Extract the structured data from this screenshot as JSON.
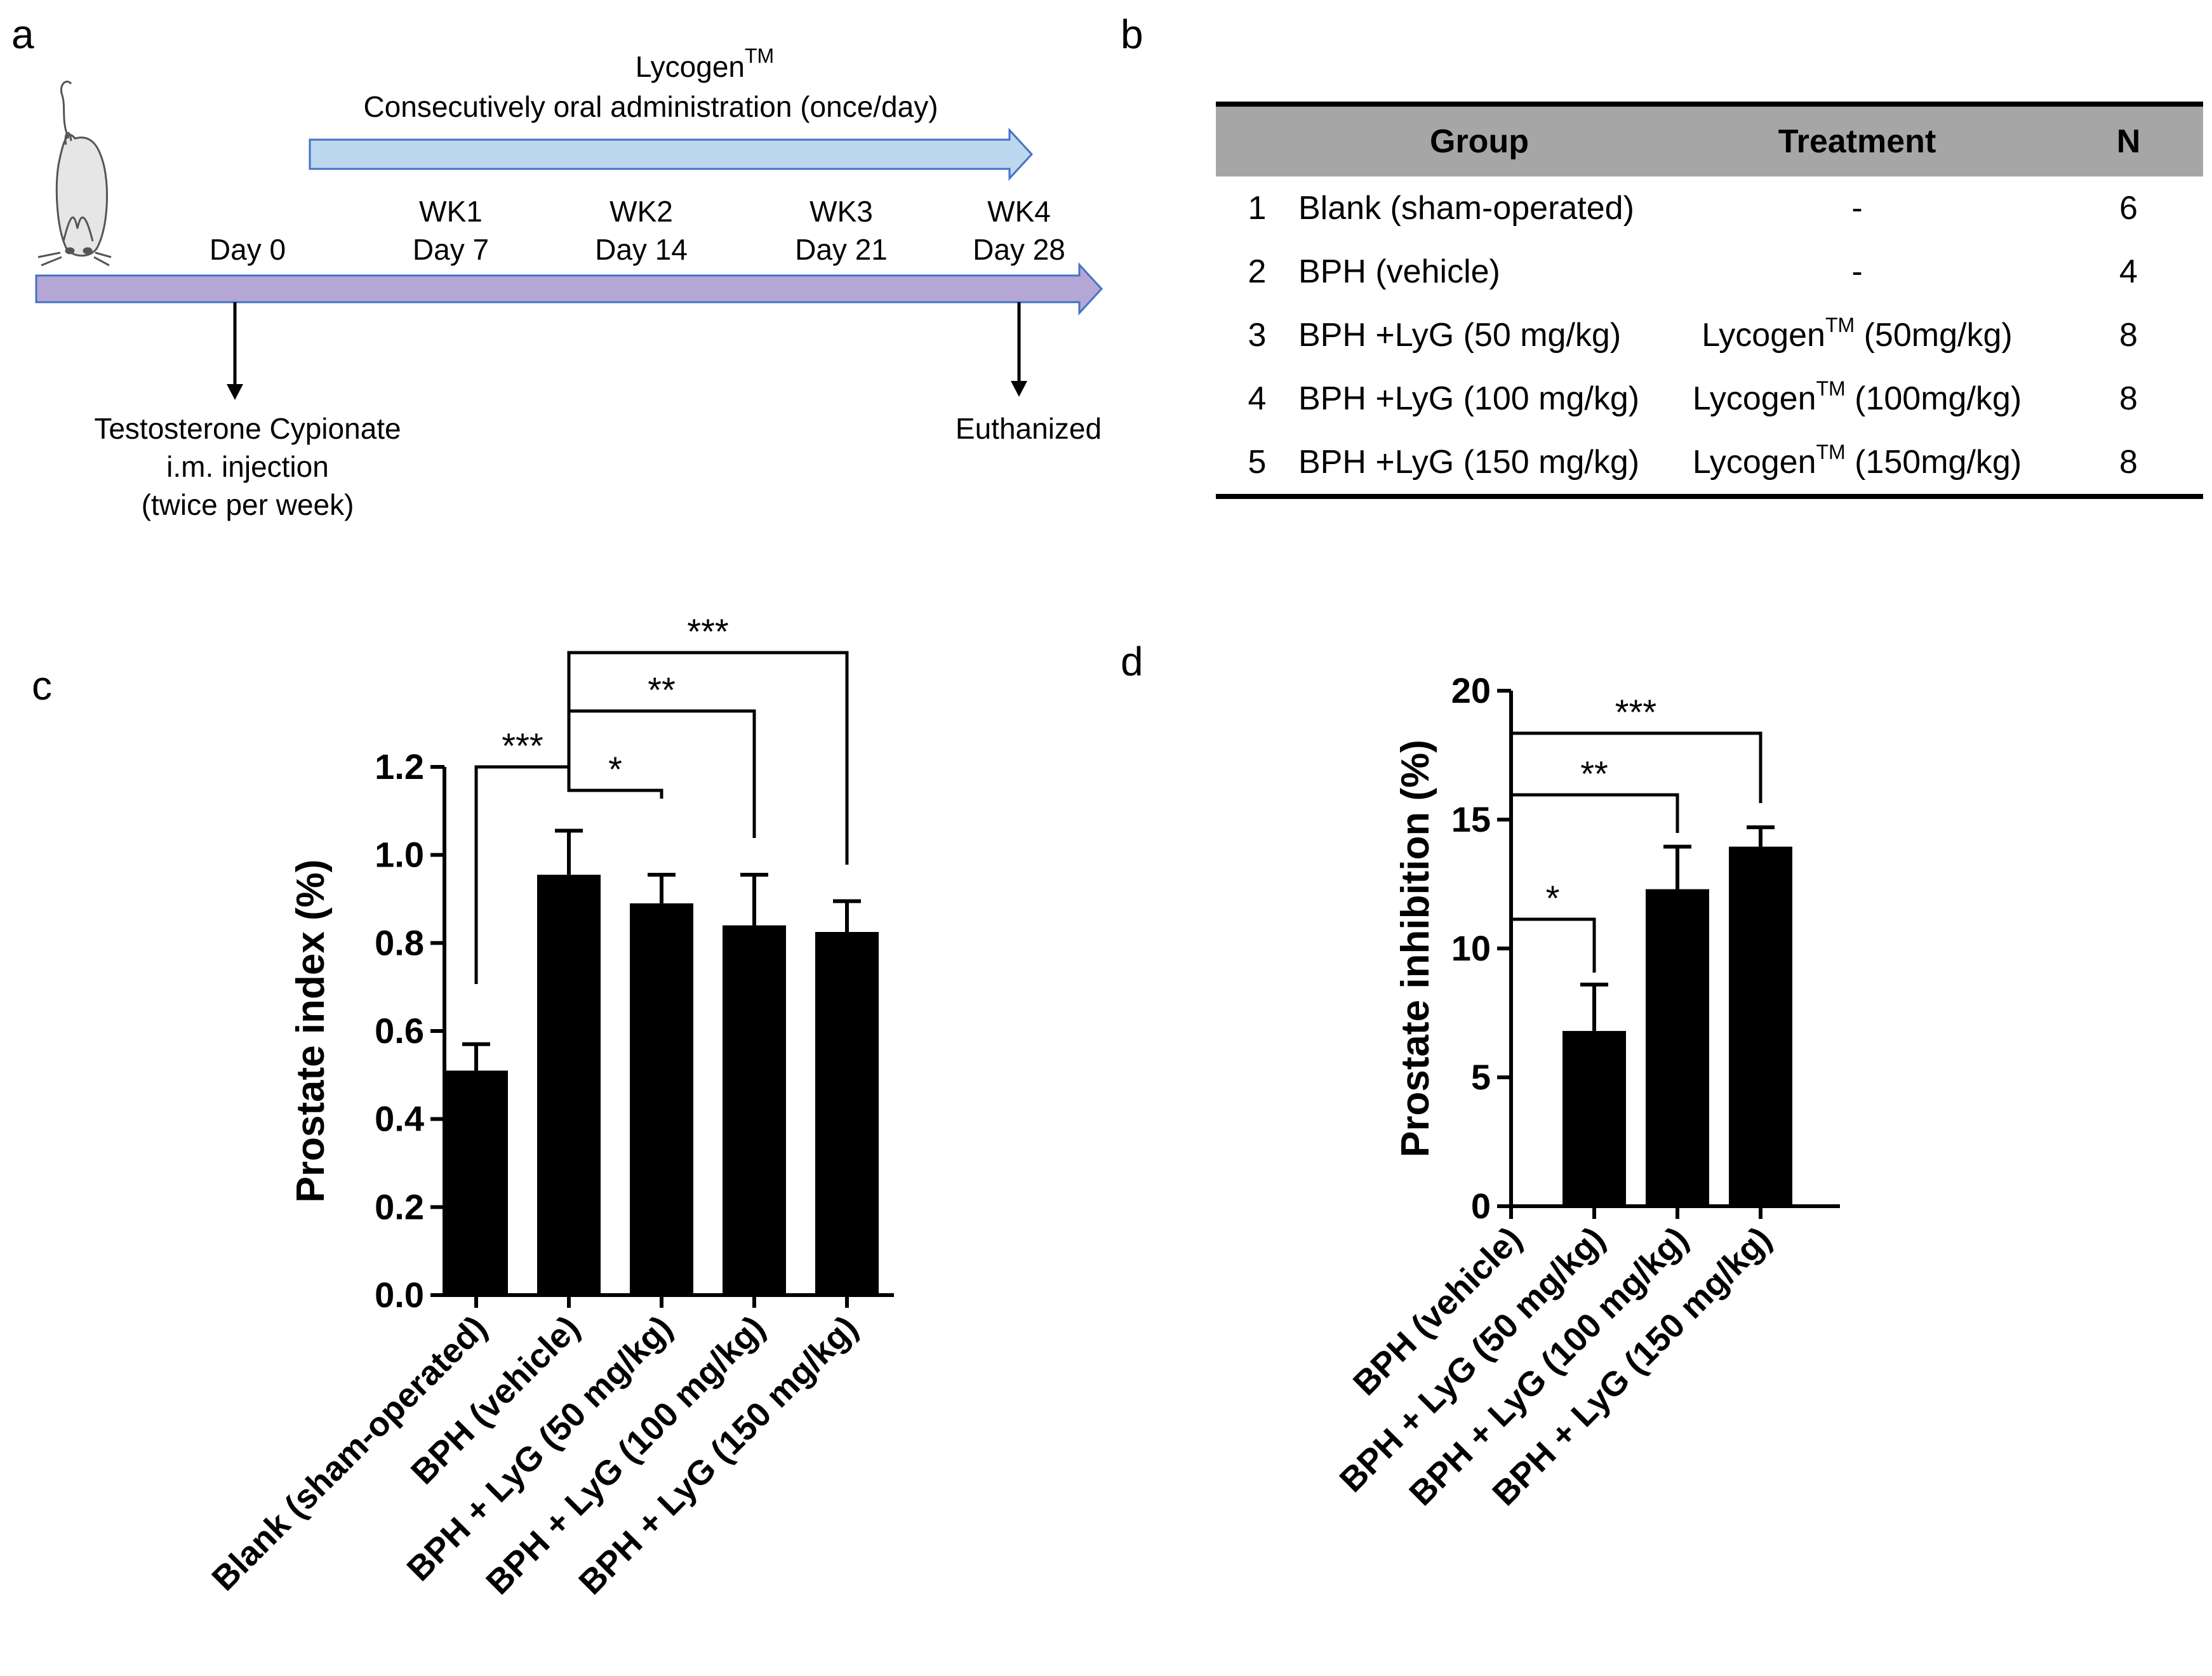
{
  "panel_letters": [
    "a",
    "b",
    "c",
    "d"
  ],
  "timeline": {
    "treatment_title": "Lycogen",
    "treatment_title_sup": "TM",
    "treatment_subtitle": "Consecutively oral administration (once/day)",
    "ticks": [
      {
        "line1": "",
        "line2": "Day 0"
      },
      {
        "line1": "WK1",
        "line2": "Day 7"
      },
      {
        "line1": "WK2",
        "line2": "Day 14"
      },
      {
        "line1": "WK3",
        "line2": "Day 21"
      },
      {
        "line1": "WK4",
        "line2": "Day 28"
      }
    ],
    "start_event": [
      "Testosterone Cypionate",
      "i.m. injection",
      "(twice per week)"
    ],
    "end_event": "Euthanized",
    "colors": {
      "treatment_arrow": "#bdd7ee",
      "main_arrow": "#b4a7d6",
      "outline": "#4472c4"
    },
    "icon": "mouse-icon"
  },
  "table": {
    "headers": [
      "",
      "Group",
      "Treatment",
      "N"
    ],
    "rows": [
      {
        "num": "1",
        "group": "Blank (sham-operated)",
        "treatment": "-",
        "treatment_sup": "",
        "treatment_rest": "",
        "n": "6"
      },
      {
        "num": "2",
        "group": "BPH (vehicle)",
        "treatment": "-",
        "treatment_sup": "",
        "treatment_rest": "",
        "n": "4"
      },
      {
        "num": "3",
        "group": "BPH +LyG (50 mg/kg)",
        "treatment": "Lycogen",
        "treatment_sup": "TM",
        "treatment_rest": " (50mg/kg)",
        "n": "8"
      },
      {
        "num": "4",
        "group": "BPH +LyG (100 mg/kg)",
        "treatment": "Lycogen",
        "treatment_sup": "TM",
        "treatment_rest": " (100mg/kg)",
        "n": "8"
      },
      {
        "num": "5",
        "group": "BPH +LyG (150 mg/kg)",
        "treatment": "Lycogen",
        "treatment_sup": "TM",
        "treatment_rest": " (150mg/kg)",
        "n": "8"
      }
    ],
    "colors": {
      "header_bg": "#a6a6a6"
    }
  },
  "chart_data": [
    {
      "type": "bar",
      "panel": "c",
      "categories": [
        "Blank (sham-operated)",
        "BPH (vehicle)",
        "BPH + LyG (50 mg/kg)",
        "BPH + LyG (100 mg/kg)",
        "BPH + LyG (150 mg/kg)"
      ],
      "values": [
        0.51,
        0.955,
        0.89,
        0.84,
        0.825
      ],
      "errors": [
        0.06,
        0.1,
        0.065,
        0.115,
        0.07
      ],
      "ylabel": "Prostate index (%)",
      "ylim": [
        0,
        1.2
      ],
      "yticks": [
        "0.0",
        "0.2",
        "0.4",
        "0.6",
        "0.8",
        "1.0",
        "1.2"
      ],
      "significance": [
        {
          "from": 0,
          "to": 1,
          "label": "***"
        },
        {
          "from": 1,
          "to": 2,
          "label": "*"
        },
        {
          "from": 1,
          "to": 3,
          "label": "**"
        },
        {
          "from": 1,
          "to": 4,
          "label": "***"
        }
      ],
      "bar_color": "#000000"
    },
    {
      "type": "bar",
      "panel": "d",
      "categories": [
        "BPH (vehicle)",
        "BPH + LyG (50 mg/kg)",
        "BPH + LyG (100 mg/kg)",
        "BPH + LyG (150 mg/kg)"
      ],
      "values": [
        0,
        6.8,
        12.3,
        13.95
      ],
      "errors": [
        0,
        1.8,
        1.65,
        0.75
      ],
      "ylabel": "Prostate inhibition (%)",
      "ylim": [
        0,
        20
      ],
      "yticks": [
        "0",
        "5",
        "10",
        "15",
        "20"
      ],
      "significance": [
        {
          "from": 0,
          "to": 1,
          "label": "*"
        },
        {
          "from": 0,
          "to": 2,
          "label": "**"
        },
        {
          "from": 0,
          "to": 3,
          "label": "***"
        }
      ],
      "bar_color": "#000000"
    }
  ]
}
